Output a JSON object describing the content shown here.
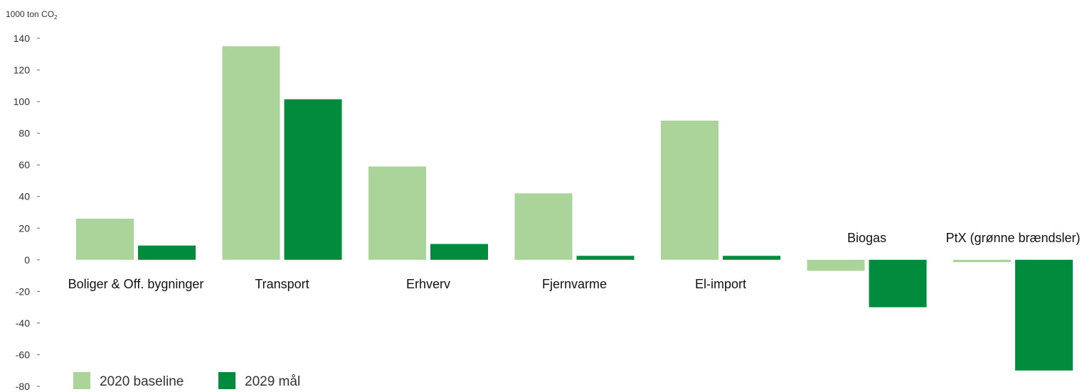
{
  "chart_data": {
    "type": "bar",
    "ylabel": "1000 ton CO",
    "ylabel_subscript": "2",
    "ylim": [
      -80,
      140
    ],
    "yticks": [
      "140",
      "120",
      "100",
      "80",
      "60",
      "40",
      "20",
      "0",
      "-20",
      "-40",
      "-60",
      "-80"
    ],
    "grid": false,
    "legend_position": "bottom-left",
    "categories": [
      "Boliger & Off. bygninger",
      "Transport",
      "Erhverv",
      "Fjernvarme",
      "El-import",
      "Biogas",
      "PtX (grønne brændsler)"
    ],
    "series": [
      {
        "name": "2020 baseline",
        "color": "#abd49b",
        "values": [
          26,
          135,
          59,
          42,
          88,
          -7,
          -1.5
        ]
      },
      {
        "name": "2029 mål",
        "color": "#008c3c",
        "values": [
          9,
          101.5,
          10,
          2.5,
          2.5,
          -30,
          -70
        ]
      }
    ]
  }
}
